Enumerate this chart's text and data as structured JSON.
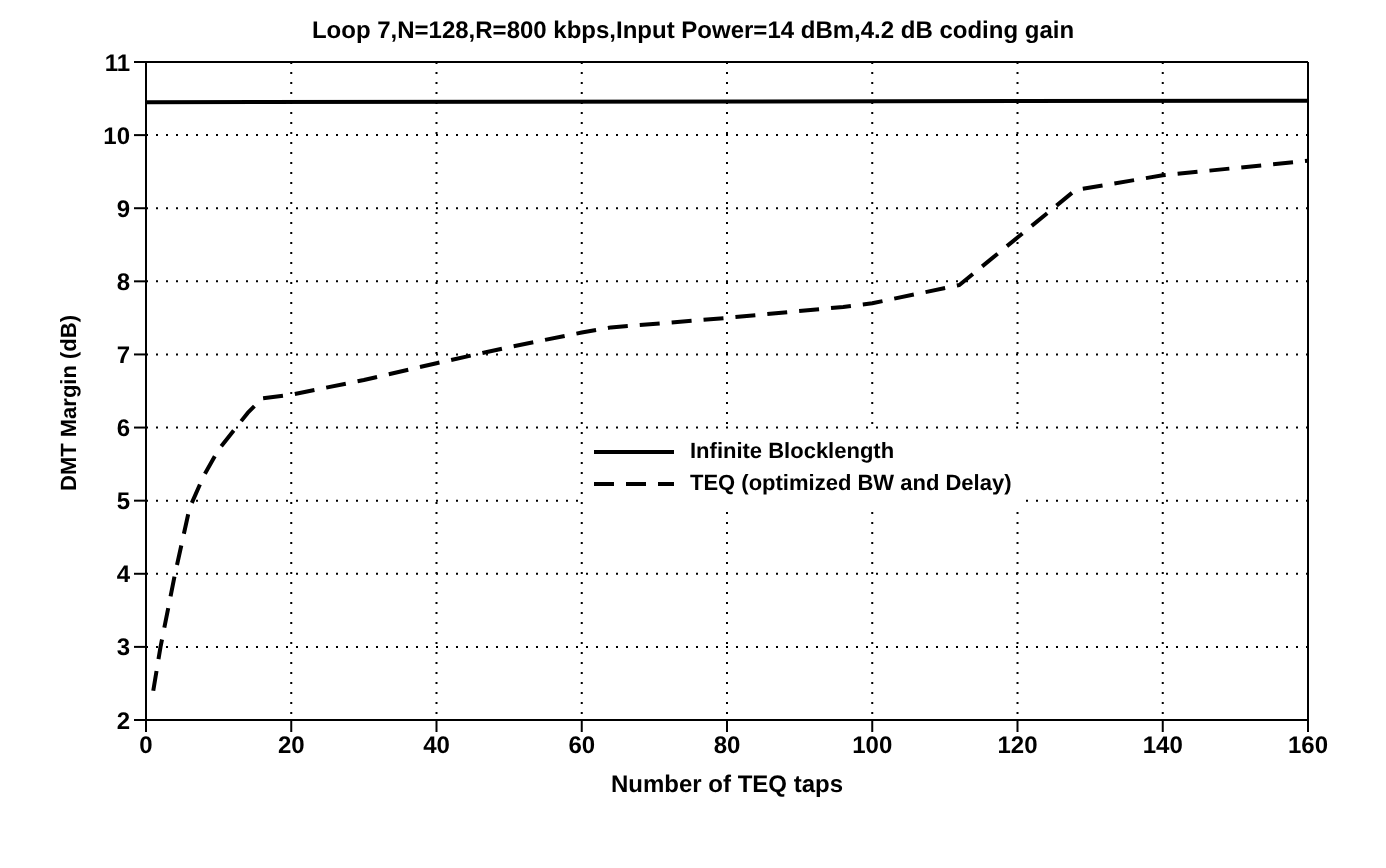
{
  "chart_data": {
    "type": "line",
    "title": "Loop 7,N=128,R=800 kbps,Input Power=14 dBm,4.2 dB coding gain",
    "xlabel": "Number of TEQ taps",
    "ylabel": "DMT Margin (dB)",
    "series": [
      {
        "name": "Infinite Blocklength",
        "color": "#000000",
        "line_style": "solid",
        "x": [
          0,
          160
        ],
        "values": [
          10.45,
          10.47
        ]
      },
      {
        "name": "TEQ (optimized BW and Delay)",
        "color": "#000000",
        "line_style": "dashed",
        "x": [
          1,
          2,
          4,
          6,
          8,
          10,
          12,
          14,
          16,
          20,
          30,
          40,
          50,
          60,
          64,
          80,
          96,
          100,
          112,
          120,
          128,
          140,
          160
        ],
        "values": [
          2.4,
          3.0,
          4.0,
          4.9,
          5.35,
          5.7,
          5.95,
          6.2,
          6.4,
          6.45,
          6.65,
          6.88,
          7.1,
          7.3,
          7.37,
          7.5,
          7.65,
          7.7,
          7.95,
          8.6,
          9.25,
          9.45,
          9.65
        ]
      }
    ],
    "xlim": [
      0,
      160
    ],
    "xticks": [
      0,
      20,
      40,
      60,
      80,
      100,
      120,
      140,
      160
    ],
    "ylim": [
      2,
      11
    ],
    "yticks": [
      2,
      3,
      4,
      5,
      6,
      7,
      8,
      9,
      10,
      11
    ],
    "grid": true,
    "legend": "right",
    "marker": "none"
  }
}
